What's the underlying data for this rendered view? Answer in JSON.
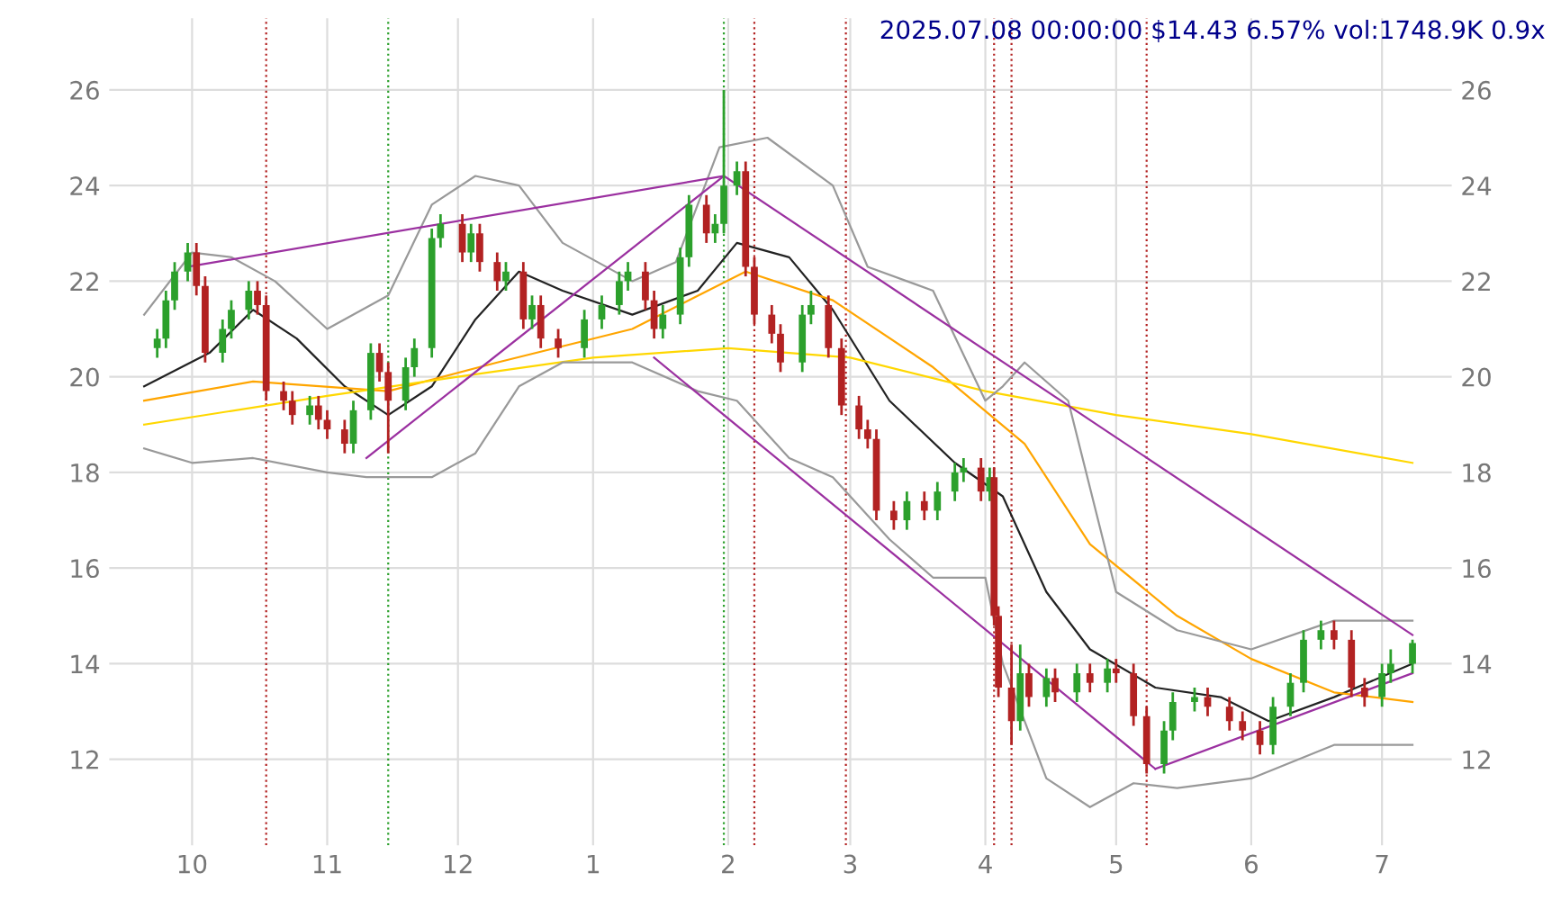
{
  "chart_data": {
    "type": "candlestick",
    "title": "2025.07.08 00:00:00 $14.43 6.57% vol:1748.9K 0.9x",
    "x": [
      "2024-09-23",
      "2024-09-25",
      "2024-09-27",
      "2024-09-30",
      "2024-10-02",
      "2024-10-04",
      "2024-10-08",
      "2024-10-10",
      "2024-10-14",
      "2024-10-16",
      "2024-10-18",
      "2024-10-22",
      "2024-10-24",
      "2024-10-28",
      "2024-10-30",
      "2024-11-01",
      "2024-11-05",
      "2024-11-07",
      "2024-11-11",
      "2024-11-13",
      "2024-11-15",
      "2024-11-19",
      "2024-11-21",
      "2024-11-25",
      "2024-11-27",
      "2024-12-02",
      "2024-12-04",
      "2024-12-06",
      "2024-12-10",
      "2024-12-12",
      "2024-12-16",
      "2024-12-18",
      "2024-12-20",
      "2024-12-24",
      "2024-12-30",
      "2025-01-03",
      "2025-01-07",
      "2025-01-09",
      "2025-01-13",
      "2025-01-15",
      "2025-01-17",
      "2025-01-21",
      "2025-01-23",
      "2025-01-27",
      "2025-01-29",
      "2025-01-31",
      "2025-02-03",
      "2025-02-05",
      "2025-02-07",
      "2025-02-11",
      "2025-02-13",
      "2025-02-18",
      "2025-02-20",
      "2025-02-24",
      "2025-02-27",
      "2025-03-03",
      "2025-03-05",
      "2025-03-07",
      "2025-03-11",
      "2025-03-14",
      "2025-03-18",
      "2025-03-21",
      "2025-03-25",
      "2025-03-27",
      "2025-03-31",
      "2025-04-02",
      "2025-04-03",
      "2025-04-04",
      "2025-04-07",
      "2025-04-09",
      "2025-04-11",
      "2025-04-15",
      "2025-04-17",
      "2025-04-22",
      "2025-04-25",
      "2025-04-29",
      "2025-05-01",
      "2025-05-05",
      "2025-05-08",
      "2025-05-12",
      "2025-05-14",
      "2025-05-19",
      "2025-05-22",
      "2025-05-27",
      "2025-05-30",
      "2025-06-03",
      "2025-06-06",
      "2025-06-10",
      "2025-06-13",
      "2025-06-17",
      "2025-06-20",
      "2025-06-24",
      "2025-06-27",
      "2025-07-01",
      "2025-07-03",
      "2025-07-08"
    ],
    "ohlc": [
      [
        20.6,
        21.0,
        20.4,
        20.8
      ],
      [
        20.8,
        21.8,
        20.6,
        21.6
      ],
      [
        21.6,
        22.4,
        21.4,
        22.2
      ],
      [
        22.2,
        22.8,
        22.0,
        22.6
      ],
      [
        22.6,
        22.8,
        21.7,
        21.9
      ],
      [
        21.9,
        22.1,
        20.3,
        20.5
      ],
      [
        20.5,
        21.2,
        20.3,
        21.0
      ],
      [
        21.0,
        21.6,
        20.8,
        21.4
      ],
      [
        21.4,
        22.0,
        21.2,
        21.8
      ],
      [
        21.8,
        22.0,
        21.3,
        21.5
      ],
      [
        21.5,
        21.7,
        19.5,
        19.7
      ],
      [
        19.7,
        19.9,
        19.3,
        19.5
      ],
      [
        19.5,
        19.7,
        19.0,
        19.2
      ],
      [
        19.2,
        19.6,
        19.0,
        19.4
      ],
      [
        19.4,
        19.6,
        18.9,
        19.1
      ],
      [
        19.1,
        19.3,
        18.7,
        18.9
      ],
      [
        18.9,
        19.1,
        18.4,
        18.6
      ],
      [
        18.6,
        19.5,
        18.4,
        19.3
      ],
      [
        19.3,
        20.7,
        19.1,
        20.5
      ],
      [
        20.5,
        20.7,
        19.9,
        20.1
      ],
      [
        20.1,
        20.3,
        18.4,
        19.5
      ],
      [
        19.5,
        20.4,
        19.3,
        20.2
      ],
      [
        20.2,
        20.8,
        20.0,
        20.6
      ],
      [
        20.6,
        23.1,
        20.4,
        22.9
      ],
      [
        22.9,
        23.4,
        22.7,
        23.2
      ],
      [
        23.2,
        23.4,
        22.4,
        22.6
      ],
      [
        22.6,
        23.2,
        22.4,
        23.0
      ],
      [
        23.0,
        23.2,
        22.2,
        22.4
      ],
      [
        22.4,
        22.6,
        21.8,
        22.0
      ],
      [
        22.0,
        22.4,
        21.8,
        22.2
      ],
      [
        22.2,
        22.4,
        21.0,
        21.2
      ],
      [
        21.2,
        21.7,
        21.0,
        21.5
      ],
      [
        21.5,
        21.7,
        20.6,
        20.8
      ],
      [
        20.8,
        21.0,
        20.4,
        20.6
      ],
      [
        20.6,
        21.4,
        20.4,
        21.2
      ],
      [
        21.2,
        21.7,
        21.0,
        21.5
      ],
      [
        21.5,
        22.2,
        21.3,
        22.0
      ],
      [
        22.0,
        22.4,
        21.8,
        22.2
      ],
      [
        22.2,
        22.4,
        21.4,
        21.6
      ],
      [
        21.6,
        21.8,
        20.8,
        21.0
      ],
      [
        21.0,
        21.5,
        20.8,
        21.3
      ],
      [
        21.3,
        22.7,
        21.1,
        22.5
      ],
      [
        22.5,
        23.8,
        22.3,
        23.6
      ],
      [
        23.6,
        23.8,
        22.8,
        23.0
      ],
      [
        23.0,
        23.4,
        22.8,
        23.2
      ],
      [
        23.2,
        26.0,
        23.0,
        24.0
      ],
      [
        24.0,
        24.5,
        23.8,
        24.3
      ],
      [
        24.3,
        24.5,
        22.1,
        22.3
      ],
      [
        22.3,
        22.5,
        21.1,
        21.3
      ],
      [
        21.3,
        21.5,
        20.7,
        20.9
      ],
      [
        20.9,
        21.1,
        20.1,
        20.3
      ],
      [
        20.3,
        21.5,
        20.1,
        21.3
      ],
      [
        21.3,
        21.8,
        21.1,
        21.5
      ],
      [
        21.5,
        21.7,
        20.4,
        20.6
      ],
      [
        20.6,
        20.8,
        19.2,
        19.4
      ],
      [
        19.4,
        19.6,
        18.7,
        18.9
      ],
      [
        18.9,
        19.1,
        18.5,
        18.7
      ],
      [
        18.7,
        18.9,
        17.0,
        17.2
      ],
      [
        17.2,
        17.4,
        16.8,
        17.0
      ],
      [
        17.0,
        17.6,
        16.8,
        17.4
      ],
      [
        17.4,
        17.6,
        17.0,
        17.2
      ],
      [
        17.2,
        17.8,
        17.0,
        17.6
      ],
      [
        17.6,
        18.2,
        17.4,
        18.0
      ],
      [
        18.0,
        18.3,
        17.8,
        18.1
      ],
      [
        18.1,
        18.3,
        17.4,
        17.6
      ],
      [
        17.6,
        18.1,
        17.4,
        17.9
      ],
      [
        17.9,
        18.1,
        14.8,
        15.0
      ],
      [
        15.0,
        15.2,
        13.3,
        13.5
      ],
      [
        13.5,
        14.4,
        12.3,
        12.8
      ],
      [
        12.8,
        14.4,
        12.6,
        13.8
      ],
      [
        13.8,
        14.0,
        13.1,
        13.3
      ],
      [
        13.3,
        13.9,
        13.1,
        13.7
      ],
      [
        13.7,
        13.9,
        13.2,
        13.4
      ],
      [
        13.4,
        14.0,
        13.2,
        13.8
      ],
      [
        13.8,
        14.0,
        13.4,
        13.6
      ],
      [
        13.6,
        14.1,
        13.4,
        13.9
      ],
      [
        13.9,
        14.1,
        13.6,
        13.8
      ],
      [
        13.8,
        14.0,
        12.7,
        12.9
      ],
      [
        12.9,
        13.1,
        11.7,
        11.9
      ],
      [
        11.9,
        12.8,
        11.7,
        12.6
      ],
      [
        12.6,
        13.4,
        12.4,
        13.2
      ],
      [
        13.2,
        13.5,
        13.0,
        13.3
      ],
      [
        13.3,
        13.5,
        12.9,
        13.1
      ],
      [
        13.1,
        13.3,
        12.6,
        12.8
      ],
      [
        12.8,
        13.0,
        12.4,
        12.6
      ],
      [
        12.6,
        12.8,
        12.1,
        12.3
      ],
      [
        12.3,
        13.3,
        12.1,
        13.1
      ],
      [
        13.1,
        13.8,
        12.9,
        13.6
      ],
      [
        13.6,
        14.7,
        13.4,
        14.5
      ],
      [
        14.5,
        14.9,
        14.3,
        14.7
      ],
      [
        14.7,
        14.9,
        14.3,
        14.5
      ],
      [
        14.5,
        14.7,
        13.3,
        13.5
      ],
      [
        13.5,
        13.7,
        13.1,
        13.3
      ],
      [
        13.3,
        14.0,
        13.1,
        13.8
      ],
      [
        13.8,
        14.3,
        13.6,
        14.0
      ],
      [
        14.0,
        14.5,
        13.8,
        14.43
      ]
    ],
    "colors": [
      "#2ca02c",
      "#2ca02c",
      "#2ca02c",
      "#2ca02c",
      "#b22222",
      "#b22222",
      "#2ca02c",
      "#2ca02c",
      "#2ca02c",
      "#b22222",
      "#b22222",
      "#b22222",
      "#b22222",
      "#2ca02c",
      "#b22222",
      "#b22222",
      "#b22222",
      "#2ca02c",
      "#2ca02c",
      "#b22222",
      "#b22222",
      "#2ca02c",
      "#2ca02c",
      "#2ca02c",
      "#2ca02c",
      "#b22222",
      "#2ca02c",
      "#b22222",
      "#b22222",
      "#2ca02c",
      "#b22222",
      "#2ca02c",
      "#b22222",
      "#b22222",
      "#2ca02c",
      "#2ca02c",
      "#2ca02c",
      "#2ca02c",
      "#b22222",
      "#b22222",
      "#2ca02c",
      "#2ca02c",
      "#2ca02c",
      "#b22222",
      "#2ca02c",
      "#2ca02c",
      "#2ca02c",
      "#b22222",
      "#b22222",
      "#b22222",
      "#b22222",
      "#2ca02c",
      "#2ca02c",
      "#b22222",
      "#b22222",
      "#b22222",
      "#b22222",
      "#b22222",
      "#b22222",
      "#2ca02c",
      "#b22222",
      "#2ca02c",
      "#2ca02c",
      "#2ca02c",
      "#b22222",
      "#2ca02c",
      "#b22222",
      "#b22222",
      "#b22222",
      "#2ca02c",
      "#b22222",
      "#2ca02c",
      "#b22222",
      "#2ca02c",
      "#b22222",
      "#2ca02c",
      "#b22222",
      "#b22222",
      "#b22222",
      "#2ca02c",
      "#2ca02c",
      "#2ca02c",
      "#b22222",
      "#b22222",
      "#b22222",
      "#b22222",
      "#2ca02c",
      "#2ca02c",
      "#2ca02c",
      "#2ca02c",
      "#b22222",
      "#b22222",
      "#b22222",
      "#2ca02c",
      "#2ca02c",
      "#2ca02c"
    ],
    "series": [
      {
        "type": "line",
        "color": "#222222",
        "x": [
          "2024-09-20",
          "2024-10-05",
          "2024-10-15",
          "2024-10-25",
          "2024-11-05",
          "2024-11-15",
          "2024-11-25",
          "2024-12-05",
          "2024-12-15",
          "2024-12-25",
          "2025-01-10",
          "2025-01-25",
          "2025-02-03",
          "2025-02-15",
          "2025-02-25",
          "2025-03-10",
          "2025-03-25",
          "2025-04-05",
          "2025-04-15",
          "2025-04-25",
          "2025-05-10",
          "2025-05-25",
          "2025-06-05",
          "2025-06-20",
          "2025-07-08"
        ],
        "values": [
          19.8,
          20.5,
          21.4,
          20.8,
          19.8,
          19.2,
          19.8,
          21.2,
          22.2,
          21.8,
          21.3,
          21.8,
          22.8,
          22.5,
          21.4,
          19.5,
          18.2,
          17.5,
          15.5,
          14.3,
          13.5,
          13.3,
          12.8,
          13.3,
          14.0
        ]
      },
      {
        "type": "line",
        "color": "#ffa500",
        "x": [
          "2024-09-20",
          "2024-10-15",
          "2024-11-15",
          "2024-12-10",
          "2025-01-10",
          "2025-02-05",
          "2025-02-25",
          "2025-03-20",
          "2025-04-10",
          "2025-04-25",
          "2025-05-15",
          "2025-06-01",
          "2025-06-20",
          "2025-07-08"
        ],
        "values": [
          19.5,
          19.9,
          19.7,
          20.3,
          21.0,
          22.2,
          21.6,
          20.2,
          18.6,
          16.5,
          15.0,
          14.1,
          13.4,
          13.2
        ]
      },
      {
        "type": "line",
        "color": "#ffd700",
        "x": [
          "2024-09-20",
          "2024-11-01",
          "2024-12-01",
          "2025-01-01",
          "2025-02-01",
          "2025-03-01",
          "2025-04-01",
          "2025-05-01",
          "2025-06-01",
          "2025-07-08"
        ],
        "values": [
          19.0,
          19.6,
          20.0,
          20.4,
          20.6,
          20.4,
          19.7,
          19.2,
          18.8,
          18.2
        ]
      },
      {
        "type": "line",
        "color": "#999999",
        "x": [
          "2024-09-20",
          "2024-10-01",
          "2024-10-10",
          "2024-10-20",
          "2024-11-01",
          "2024-11-15",
          "2024-11-25",
          "2024-12-05",
          "2024-12-15",
          "2024-12-25",
          "2025-01-10",
          "2025-01-20",
          "2025-01-30",
          "2025-02-10",
          "2025-02-25",
          "2025-03-05",
          "2025-03-20",
          "2025-04-01",
          "2025-04-05",
          "2025-04-10",
          "2025-04-20",
          "2025-05-01",
          "2025-05-15",
          "2025-06-01",
          "2025-06-20",
          "2025-07-08"
        ],
        "values": [
          21.3,
          22.6,
          22.5,
          22.0,
          21.0,
          21.7,
          23.6,
          24.2,
          24.0,
          22.8,
          22.0,
          22.4,
          24.8,
          25.0,
          24.0,
          22.3,
          21.8,
          19.5,
          19.8,
          20.3,
          19.5,
          15.5,
          14.7,
          14.3,
          14.9,
          14.9
        ]
      },
      {
        "type": "line",
        "color": "#999999",
        "x": [
          "2024-09-20",
          "2024-10-01",
          "2024-10-15",
          "2024-11-01",
          "2024-11-10",
          "2024-11-25",
          "2024-12-05",
          "2024-12-15",
          "2024-12-25",
          "2025-01-10",
          "2025-01-25",
          "2025-02-03",
          "2025-02-15",
          "2025-02-25",
          "2025-03-10",
          "2025-03-20",
          "2025-04-01",
          "2025-04-05",
          "2025-04-15",
          "2025-04-25",
          "2025-05-05",
          "2025-05-15",
          "2025-06-01",
          "2025-06-20",
          "2025-07-08"
        ],
        "values": [
          18.5,
          18.2,
          18.3,
          18.0,
          17.9,
          17.9,
          18.4,
          19.8,
          20.3,
          20.3,
          19.7,
          19.5,
          18.3,
          17.9,
          16.6,
          15.8,
          15.8,
          14.0,
          11.6,
          11.0,
          11.5,
          11.4,
          11.6,
          12.3,
          12.3
        ]
      },
      {
        "type": "line",
        "color": "#9b30a0",
        "x": [
          "2024-09-30",
          "2025-01-31"
        ],
        "values": [
          22.3,
          24.2
        ]
      },
      {
        "type": "line",
        "color": "#9b30a0",
        "x": [
          "2025-01-31",
          "2025-07-08"
        ],
        "values": [
          24.2,
          14.6
        ]
      },
      {
        "type": "line",
        "color": "#9b30a0",
        "x": [
          "2024-11-10",
          "2025-01-31"
        ],
        "values": [
          18.3,
          24.2
        ]
      },
      {
        "type": "line",
        "color": "#9b30a0",
        "x": [
          "2025-01-15",
          "2025-05-10"
        ],
        "values": [
          20.4,
          11.8
        ]
      },
      {
        "type": "line",
        "color": "#9b30a0",
        "x": [
          "2025-05-10",
          "2025-07-08"
        ],
        "values": [
          11.8,
          13.8
        ]
      }
    ],
    "ref_lines": [
      {
        "axis": "x",
        "value": "2024-10-18",
        "color": "#b22222",
        "line_style": "dotted"
      },
      {
        "axis": "x",
        "value": "2024-11-15",
        "color": "#2ca02c",
        "line_style": "dotted"
      },
      {
        "axis": "x",
        "value": "2025-01-31",
        "color": "#2ca02c",
        "line_style": "dotted"
      },
      {
        "axis": "x",
        "value": "2025-02-07",
        "color": "#b22222",
        "line_style": "dotted"
      },
      {
        "axis": "x",
        "value": "2025-02-28",
        "color": "#b22222",
        "line_style": "dotted"
      },
      {
        "axis": "x",
        "value": "2025-04-03",
        "color": "#b22222",
        "line_style": "dotted"
      },
      {
        "axis": "x",
        "value": "2025-04-07",
        "color": "#b22222",
        "line_style": "dotted"
      },
      {
        "axis": "x",
        "value": "2025-05-08",
        "color": "#b22222",
        "line_style": "dotted"
      }
    ],
    "xlim": [
      "2024-09-12",
      "2025-07-17"
    ],
    "xticks": [
      {
        "value": "2024-10-01",
        "label": "10"
      },
      {
        "value": "2024-11-01",
        "label": "11"
      },
      {
        "value": "2024-12-01",
        "label": "12"
      },
      {
        "value": "2025-01-01",
        "label": "1"
      },
      {
        "value": "2025-02-01",
        "label": "2"
      },
      {
        "value": "2025-03-01",
        "label": "3"
      },
      {
        "value": "2025-04-01",
        "label": "4"
      },
      {
        "value": "2025-05-01",
        "label": "5"
      },
      {
        "value": "2025-06-01",
        "label": "6"
      },
      {
        "value": "2025-07-01",
        "label": "7"
      }
    ],
    "ylim": [
      10.2,
      27.5
    ],
    "yticks": [
      12,
      14,
      16,
      18,
      20,
      22,
      24,
      26
    ],
    "y2lim": [
      10.2,
      27.5
    ],
    "y2ticks": [
      12,
      14,
      16,
      18,
      20,
      22,
      24,
      26
    ],
    "grid": true
  }
}
